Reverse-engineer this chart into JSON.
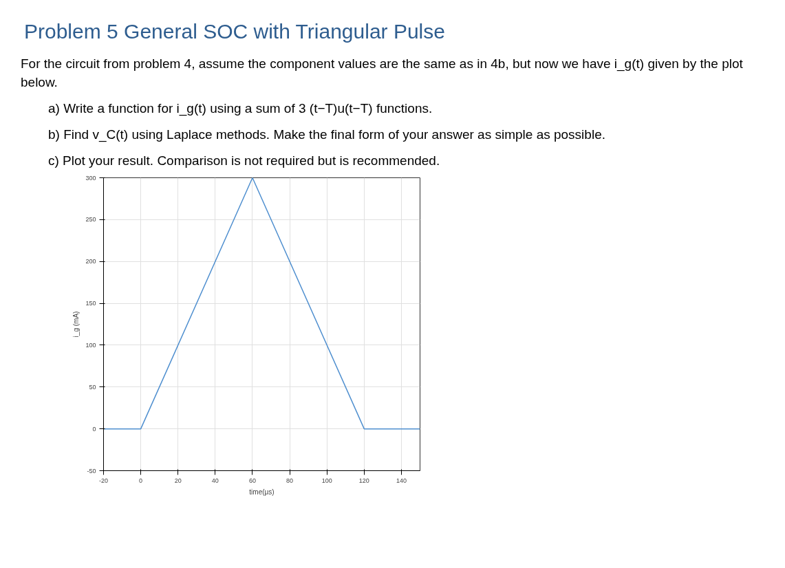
{
  "chart_data": {
    "type": "line",
    "title": "Problem 5 General SOC with Triangular Pulse",
    "annotations": [
      "For the circuit from problem 4, assume the component values are the same as in 4b, but now we have i_g(t) given by the plot below.",
      "a)  Write a function for i_g(t) using a sum of 3 (t−T)u(t−T) functions.",
      "b)  Find v_C(t) using Laplace methods. Make the final form of your answer as simple as possible.",
      "c)  Plot your result. Comparison is not required but is recommended."
    ],
    "xlabel": "time(μs)",
    "ylabel": "i_g (mA)",
    "x": [
      -20,
      0,
      60,
      120,
      150
    ],
    "series": [
      {
        "color": "#4f8fcf",
        "values": [
          0,
          0,
          300,
          0,
          0
        ]
      }
    ],
    "xlim": [
      -20,
      150
    ],
    "ylim": [
      -50,
      300
    ],
    "xticks": [
      -20,
      0,
      20,
      40,
      60,
      80,
      100,
      120,
      140
    ],
    "yticks": [
      -50,
      0,
      50,
      100,
      150,
      200,
      250,
      300
    ],
    "grid": true,
    "marker": "none",
    "line_style": "solid"
  }
}
